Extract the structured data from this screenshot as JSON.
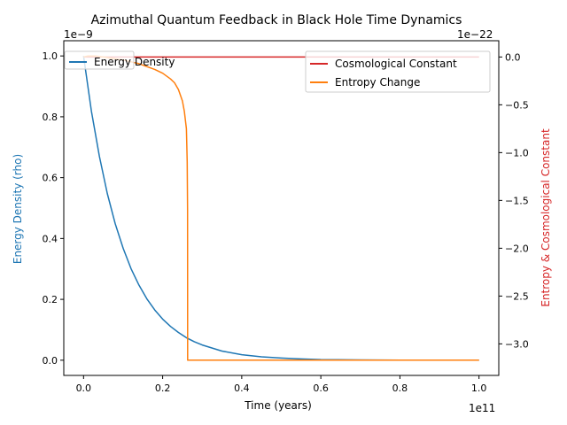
{
  "chart_data": {
    "type": "line",
    "title": "Azimuthal Quantum Feedback in Black Hole Time Dynamics",
    "xlabel": "Time (years)",
    "ylabel_left": "Energy Density (rho)",
    "ylabel_right": "Entropy & Cosmological Constant",
    "x_offset_label": "1e11",
    "y_left_offset_label": "1e−9",
    "y_right_offset_label": "1e−22",
    "x_range": [
      -0.05,
      1.05
    ],
    "y_left_range": [
      -0.05,
      1.05
    ],
    "y_right_range": [
      -3.33,
      0.17
    ],
    "x_ticks": [
      0.0,
      0.2,
      0.4,
      0.6,
      0.8,
      1.0
    ],
    "x_tick_labels": [
      "0.0",
      "0.2",
      "0.4",
      "0.6",
      "0.8",
      "1.0"
    ],
    "y_left_ticks": [
      0.0,
      0.2,
      0.4,
      0.6,
      0.8,
      1.0
    ],
    "y_left_tick_labels": [
      "0.0",
      "0.2",
      "0.4",
      "0.6",
      "0.8",
      "1.0"
    ],
    "y_right_ticks": [
      0.0,
      -0.5,
      -1.0,
      -1.5,
      -2.0,
      -2.5,
      -3.0
    ],
    "y_right_tick_labels": [
      "0.0",
      "−0.5",
      "−1.0",
      "−1.5",
      "−2.0",
      "−2.5",
      "−3.0"
    ],
    "grid": false,
    "legend_left": {
      "placement": "upper-left",
      "entries": [
        "Energy Density"
      ]
    },
    "legend_right": {
      "placement": "upper-right",
      "entries": [
        "Cosmological Constant",
        "Entropy Change"
      ]
    },
    "series": [
      {
        "name": "Energy Density",
        "axis": "left",
        "color": "#1f77b4",
        "x": [
          0,
          0.02,
          0.04,
          0.06,
          0.08,
          0.1,
          0.12,
          0.14,
          0.16,
          0.18,
          0.2,
          0.22,
          0.24,
          0.26,
          0.28,
          0.3,
          0.35,
          0.4,
          0.45,
          0.5,
          0.55,
          0.6,
          0.7,
          0.8,
          0.9,
          1.0
        ],
        "y": [
          1.0,
          0.818,
          0.67,
          0.548,
          0.449,
          0.368,
          0.301,
          0.247,
          0.202,
          0.165,
          0.135,
          0.111,
          0.091,
          0.074,
          0.061,
          0.05,
          0.03,
          0.018,
          0.011,
          0.007,
          0.004,
          0.002,
          0.001,
          0.0003,
          0.0001,
          0.0
        ]
      },
      {
        "name": "Cosmological Constant",
        "axis": "right",
        "color": "#d62728",
        "x": [
          0,
          1.0
        ],
        "y": [
          0.0,
          0.0
        ]
      },
      {
        "name": "Entropy Change",
        "axis": "right",
        "color": "#ff7f0e",
        "x": [
          0,
          0.01,
          0.02,
          0.03,
          0.05,
          0.08,
          0.1,
          0.12,
          0.14,
          0.16,
          0.18,
          0.2,
          0.22,
          0.23,
          0.24,
          0.25,
          0.255,
          0.26,
          0.261,
          0.262,
          0.263,
          0.2631,
          0.264,
          0.4,
          0.6,
          0.8,
          1.0
        ],
        "y": [
          0.0,
          0.01,
          0.01,
          0.01,
          0.0,
          -0.02,
          -0.03,
          -0.05,
          -0.07,
          -0.1,
          -0.13,
          -0.17,
          -0.23,
          -0.27,
          -0.34,
          -0.46,
          -0.57,
          -0.75,
          -0.9,
          -1.1,
          -1.6,
          -3.17,
          -3.17,
          -3.17,
          -3.17,
          -3.17,
          -3.17
        ]
      }
    ]
  }
}
